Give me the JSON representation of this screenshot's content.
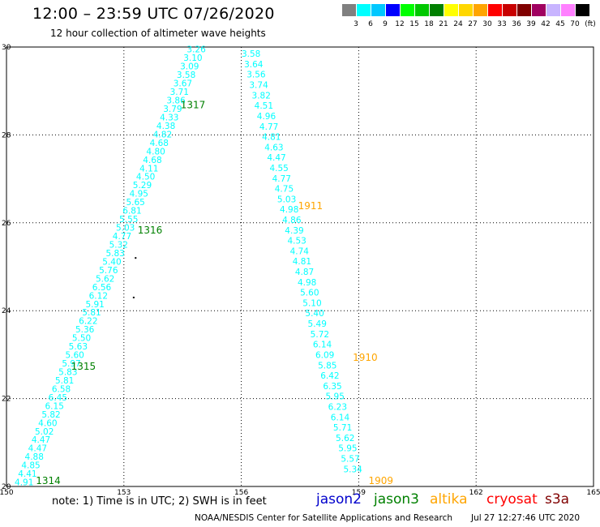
{
  "title": "12:00 – 23:59 UTC 07/26/2020",
  "subtitle": "12 hour collection of altimeter wave heights",
  "colorbar": {
    "unit": "(ft)",
    "bins": [
      {
        "color": "#808080",
        "label": "3"
      },
      {
        "color": "#00ffff",
        "label": "6"
      },
      {
        "color": "#00c8ff",
        "label": "9"
      },
      {
        "color": "#0000ff",
        "label": "12"
      },
      {
        "color": "#00ff00",
        "label": "15"
      },
      {
        "color": "#00c800",
        "label": "18"
      },
      {
        "color": "#008000",
        "label": "21"
      },
      {
        "color": "#ffff00",
        "label": "24"
      },
      {
        "color": "#ffd700",
        "label": "27"
      },
      {
        "color": "#ffa500",
        "label": "30"
      },
      {
        "color": "#ff0000",
        "label": "33"
      },
      {
        "color": "#c80000",
        "label": "36"
      },
      {
        "color": "#800000",
        "label": "39"
      },
      {
        "color": "#a00060",
        "label": "42"
      },
      {
        "color": "#c8b4ff",
        "label": "45"
      },
      {
        "color": "#ff80ff",
        "label": "70"
      },
      {
        "color": "#000000",
        "label": ""
      }
    ]
  },
  "footer": {
    "note": "note:  1) Time is in UTC;  2) SWH is in feet",
    "satellites": [
      {
        "name": "jason2",
        "color": "#0000cc"
      },
      {
        "name": "jason3",
        "color": "#008000"
      },
      {
        "name": "altika",
        "color": "#ffa500"
      },
      {
        "name": "cryosat",
        "color": "#ff0000"
      },
      {
        "name": "s3a",
        "color": "#800000"
      }
    ],
    "credit": "NOAA/NESDIS Center for Satellite Applications and Research",
    "timestamp": "Jul 27 12:27:46 UTC 2020"
  },
  "chart_data": {
    "type": "scatter",
    "xlim": [
      150,
      165
    ],
    "ylim": [
      20,
      30
    ],
    "x_ticks": [
      "150",
      "153",
      "156",
      "159",
      "162",
      "165"
    ],
    "y_ticks": [
      "20",
      "22",
      "24",
      "26",
      "28",
      "30"
    ],
    "grid": true,
    "tracks": [
      {
        "color": "#00ffff",
        "start": [
          150.45,
          20.1
        ],
        "end": [
          154.85,
          29.95
        ],
        "values": [
          "4.91",
          "4.41",
          "4.85",
          "4.88",
          "4.47",
          "4.47",
          "5.02",
          "4.60",
          "5.82",
          "6.15",
          "6.45",
          "6.58",
          "5.81",
          "5.83",
          "5.97",
          "5.60",
          "5.63",
          "5.50",
          "5.36",
          "6.22",
          "5.81",
          "5.91",
          "6.12",
          "6.56",
          "5.62",
          "5.76",
          "5.40",
          "5.83",
          "5.32",
          "4.77",
          "5.03",
          "5.55",
          "6.81",
          "5.65",
          "4.95",
          "5.29",
          "4.50",
          "4.11",
          "4.68",
          "4.80",
          "4.68",
          "4.82",
          "4.38",
          "4.33",
          "3.79",
          "3.86",
          "3.71",
          "3.67",
          "3.58",
          "3.09",
          "3.10",
          "3.26"
        ]
      },
      {
        "color": "#00ffff",
        "start": [
          156.25,
          29.85
        ],
        "end": [
          158.85,
          20.4
        ],
        "values": [
          "3.58",
          "3.64",
          "3.56",
          "3.74",
          "3.82",
          "4.51",
          "4.96",
          "4.77",
          "4.81",
          "4.63",
          "4.47",
          "4.55",
          "4.77",
          "4.75",
          "5.03",
          "4.98",
          "4.86",
          "4.39",
          "4.53",
          "4.74",
          "4.81",
          "4.87",
          "4.98",
          "5.60",
          "5.10",
          "5.40",
          "5.49",
          "5.72",
          "6.14",
          "6.09",
          "5.85",
          "6.42",
          "6.35",
          "5.95",
          "6.23",
          "6.14",
          "5.71",
          "5.62",
          "5.95",
          "5.57",
          "5.34"
        ]
      }
    ],
    "pass_labels": [
      {
        "text": "1314",
        "x": 150.75,
        "y": 20.15,
        "color": "#008000"
      },
      {
        "text": "1315",
        "x": 151.65,
        "y": 22.75,
        "color": "#008000"
      },
      {
        "text": "1316",
        "x": 153.35,
        "y": 25.85,
        "color": "#008000"
      },
      {
        "text": "1317",
        "x": 154.45,
        "y": 28.7,
        "color": "#008000"
      },
      {
        "text": "1909",
        "x": 159.25,
        "y": 20.15,
        "color": "#ffa500"
      },
      {
        "text": "1910",
        "x": 158.85,
        "y": 22.95,
        "color": "#ffa500"
      },
      {
        "text": "1911",
        "x": 157.45,
        "y": 26.4,
        "color": "#ffa500"
      }
    ],
    "points": [
      {
        "x": 153.3,
        "y": 25.2,
        "color": "#000000"
      },
      {
        "x": 153.25,
        "y": 24.3,
        "color": "#000000"
      }
    ]
  }
}
